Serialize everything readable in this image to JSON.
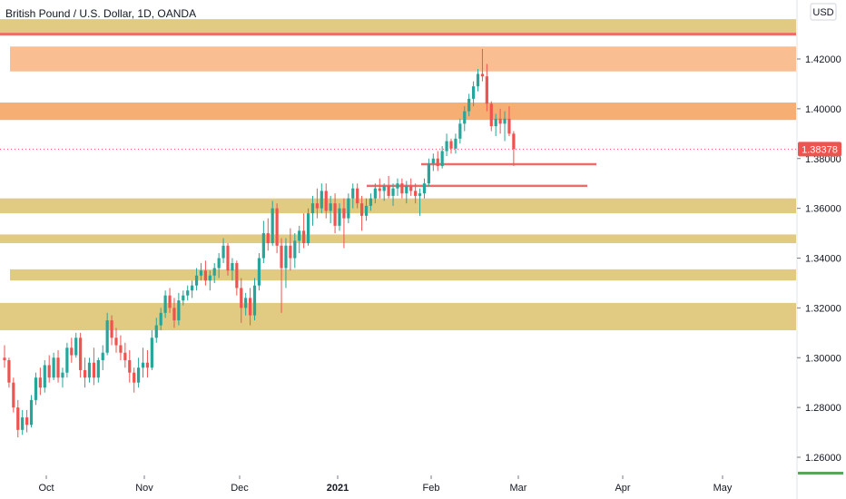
{
  "header": {
    "title": "British Pound / U.S. Dollar, 1D, OANDA"
  },
  "currency_button": {
    "label": "USD"
  },
  "colors": {
    "up": "#26a69a",
    "down": "#ef5350",
    "zone_gold": "#d9bb5f",
    "zone_peach": "#f8b37f",
    "zone_orange": "#f5a05a",
    "resistance_line": "#ef6b6b",
    "axis_text": "#131722",
    "last_price_bg": "#ef5350",
    "last_price_dots": "#ef5350",
    "green_strip": "#5aa55d"
  },
  "chart_data": {
    "type": "candlestick",
    "title": "British Pound / U.S. Dollar, 1D, OANDA",
    "xlabel": "",
    "ylabel": "",
    "currency": "USD",
    "ylim": [
      1.248,
      1.438
    ],
    "y_ticks": [
      "1.42000",
      "1.40000",
      "1.38000",
      "1.36000",
      "1.34000",
      "1.32000",
      "1.30000",
      "1.28000",
      "1.26000"
    ],
    "x_ticks": [
      {
        "label": "Oct",
        "bold": false
      },
      {
        "label": "Nov",
        "bold": false
      },
      {
        "label": "Dec",
        "bold": false
      },
      {
        "label": "2021",
        "bold": true
      },
      {
        "label": "Feb",
        "bold": false
      },
      {
        "label": "Mar",
        "bold": false
      },
      {
        "label": "Apr",
        "bold": false
      },
      {
        "label": "May",
        "bold": false
      }
    ],
    "last_price": "1.38378",
    "zones": [
      {
        "top": 1.436,
        "bottom": 1.43,
        "color": "gold",
        "full_width": true
      },
      {
        "top": 1.425,
        "bottom": 1.415,
        "color": "peach",
        "full_width": false
      },
      {
        "top": 1.4025,
        "bottom": 1.3955,
        "color": "orange",
        "full_width": true
      },
      {
        "top": 1.364,
        "bottom": 1.358,
        "color": "gold",
        "full_width": true
      },
      {
        "top": 1.3495,
        "bottom": 1.346,
        "color": "gold",
        "full_width": true
      },
      {
        "top": 1.3355,
        "bottom": 1.331,
        "color": "gold",
        "full_width": false
      },
      {
        "top": 1.322,
        "bottom": 1.311,
        "color": "gold",
        "full_width": true
      }
    ],
    "lines": [
      {
        "price": 1.43,
        "from": "left-edge",
        "to": "right-edge"
      },
      {
        "price": 1.3777,
        "from": "Jan 28",
        "to": "Mar 29"
      },
      {
        "price": 1.369,
        "from": "Jan 10",
        "to": "Mar 25"
      }
    ],
    "candles": [
      [
        1.3,
        1.305,
        1.296,
        1.299
      ],
      [
        1.299,
        1.3,
        1.288,
        1.29
      ],
      [
        1.29,
        1.292,
        1.278,
        1.28
      ],
      [
        1.28,
        1.283,
        1.268,
        1.271
      ],
      [
        1.271,
        1.279,
        1.269,
        1.276
      ],
      [
        1.276,
        1.279,
        1.27,
        1.273
      ],
      [
        1.273,
        1.285,
        1.272,
        1.283
      ],
      [
        1.283,
        1.294,
        1.281,
        1.292
      ],
      [
        1.292,
        1.296,
        1.285,
        1.288
      ],
      [
        1.288,
        1.299,
        1.286,
        1.297
      ],
      [
        1.297,
        1.301,
        1.29,
        1.292
      ],
      [
        1.292,
        1.302,
        1.291,
        1.3
      ],
      [
        1.3,
        1.303,
        1.29,
        1.292
      ],
      [
        1.292,
        1.296,
        1.288,
        1.294
      ],
      [
        1.294,
        1.306,
        1.292,
        1.304
      ],
      [
        1.304,
        1.308,
        1.298,
        1.301
      ],
      [
        1.301,
        1.31,
        1.3,
        1.308
      ],
      [
        1.308,
        1.31,
        1.292,
        1.295
      ],
      [
        1.295,
        1.3,
        1.288,
        1.292
      ],
      [
        1.292,
        1.3,
        1.29,
        1.298
      ],
      [
        1.298,
        1.304,
        1.289,
        1.292
      ],
      [
        1.292,
        1.3,
        1.29,
        1.299
      ],
      [
        1.299,
        1.305,
        1.295,
        1.302
      ],
      [
        1.302,
        1.318,
        1.301,
        1.315
      ],
      [
        1.315,
        1.317,
        1.305,
        1.308
      ],
      [
        1.308,
        1.312,
        1.302,
        1.305
      ],
      [
        1.305,
        1.309,
        1.299,
        1.302
      ],
      [
        1.302,
        1.306,
        1.296,
        1.299
      ],
      [
        1.299,
        1.303,
        1.29,
        1.294
      ],
      [
        1.294,
        1.296,
        1.286,
        1.29
      ],
      [
        1.29,
        1.3,
        1.288,
        1.296
      ],
      [
        1.296,
        1.304,
        1.292,
        1.298
      ],
      [
        1.298,
        1.303,
        1.292,
        1.296
      ],
      [
        1.296,
        1.311,
        1.295,
        1.308
      ],
      [
        1.308,
        1.316,
        1.306,
        1.313
      ],
      [
        1.313,
        1.32,
        1.311,
        1.318
      ],
      [
        1.318,
        1.327,
        1.316,
        1.325
      ],
      [
        1.325,
        1.328,
        1.318,
        1.32
      ],
      [
        1.32,
        1.324,
        1.312,
        1.315
      ],
      [
        1.315,
        1.326,
        1.313,
        1.323
      ],
      [
        1.323,
        1.327,
        1.321,
        1.325
      ],
      [
        1.325,
        1.329,
        1.323,
        1.327
      ],
      [
        1.327,
        1.331,
        1.324,
        1.329
      ],
      [
        1.329,
        1.336,
        1.327,
        1.333
      ],
      [
        1.333,
        1.338,
        1.331,
        1.335
      ],
      [
        1.335,
        1.339,
        1.329,
        1.331
      ],
      [
        1.331,
        1.335,
        1.327,
        1.333
      ],
      [
        1.333,
        1.338,
        1.33,
        1.336
      ],
      [
        1.336,
        1.342,
        1.332,
        1.34
      ],
      [
        1.34,
        1.348,
        1.338,
        1.345
      ],
      [
        1.345,
        1.346,
        1.333,
        1.335
      ],
      [
        1.335,
        1.34,
        1.331,
        1.338
      ],
      [
        1.338,
        1.339,
        1.325,
        1.328
      ],
      [
        1.328,
        1.332,
        1.314,
        1.32
      ],
      [
        1.32,
        1.326,
        1.317,
        1.324
      ],
      [
        1.324,
        1.328,
        1.313,
        1.317
      ],
      [
        1.317,
        1.332,
        1.315,
        1.329
      ],
      [
        1.329,
        1.342,
        1.327,
        1.34
      ],
      [
        1.34,
        1.355,
        1.338,
        1.35
      ],
      [
        1.35,
        1.356,
        1.343,
        1.346
      ],
      [
        1.346,
        1.363,
        1.345,
        1.36
      ],
      [
        1.36,
        1.362,
        1.342,
        1.345
      ],
      [
        1.345,
        1.348,
        1.318,
        1.336
      ],
      [
        1.336,
        1.348,
        1.328,
        1.345
      ],
      [
        1.345,
        1.352,
        1.335,
        1.34
      ],
      [
        1.34,
        1.35,
        1.336,
        1.347
      ],
      [
        1.347,
        1.353,
        1.342,
        1.351
      ],
      [
        1.351,
        1.358,
        1.344,
        1.346
      ],
      [
        1.346,
        1.36,
        1.345,
        1.358
      ],
      [
        1.358,
        1.365,
        1.353,
        1.362
      ],
      [
        1.362,
        1.368,
        1.356,
        1.36
      ],
      [
        1.36,
        1.37,
        1.358,
        1.367
      ],
      [
        1.367,
        1.37,
        1.356,
        1.359
      ],
      [
        1.359,
        1.365,
        1.354,
        1.362
      ],
      [
        1.362,
        1.366,
        1.35,
        1.353
      ],
      [
        1.353,
        1.362,
        1.351,
        1.36
      ],
      [
        1.36,
        1.364,
        1.344,
        1.356
      ],
      [
        1.356,
        1.366,
        1.354,
        1.364
      ],
      [
        1.364,
        1.37,
        1.36,
        1.368
      ],
      [
        1.368,
        1.37,
        1.36,
        1.362
      ],
      [
        1.362,
        1.365,
        1.351,
        1.357
      ],
      [
        1.357,
        1.364,
        1.355,
        1.361
      ],
      [
        1.361,
        1.366,
        1.359,
        1.364
      ],
      [
        1.364,
        1.37,
        1.362,
        1.368
      ],
      [
        1.368,
        1.372,
        1.364,
        1.367
      ],
      [
        1.367,
        1.37,
        1.363,
        1.369
      ],
      [
        1.369,
        1.373,
        1.364,
        1.365
      ],
      [
        1.365,
        1.37,
        1.361,
        1.368
      ],
      [
        1.368,
        1.372,
        1.365,
        1.37
      ],
      [
        1.37,
        1.372,
        1.364,
        1.366
      ],
      [
        1.366,
        1.371,
        1.362,
        1.369
      ],
      [
        1.369,
        1.372,
        1.365,
        1.367
      ],
      [
        1.367,
        1.37,
        1.362,
        1.365
      ],
      [
        1.365,
        1.368,
        1.357,
        1.366
      ],
      [
        1.366,
        1.372,
        1.364,
        1.37
      ],
      [
        1.37,
        1.38,
        1.369,
        1.378
      ],
      [
        1.378,
        1.382,
        1.375,
        1.38
      ],
      [
        1.38,
        1.383,
        1.375,
        1.377
      ],
      [
        1.377,
        1.385,
        1.376,
        1.383
      ],
      [
        1.383,
        1.39,
        1.381,
        1.387
      ],
      [
        1.387,
        1.388,
        1.382,
        1.384
      ],
      [
        1.384,
        1.39,
        1.382,
        1.388
      ],
      [
        1.388,
        1.396,
        1.386,
        1.394
      ],
      [
        1.394,
        1.401,
        1.391,
        1.399
      ],
      [
        1.399,
        1.406,
        1.397,
        1.404
      ],
      [
        1.404,
        1.411,
        1.401,
        1.409
      ],
      [
        1.409,
        1.416,
        1.407,
        1.414
      ],
      [
        1.414,
        1.424,
        1.411,
        1.413
      ],
      [
        1.413,
        1.418,
        1.399,
        1.402
      ],
      [
        1.402,
        1.403,
        1.391,
        1.393
      ],
      [
        1.393,
        1.398,
        1.389,
        1.396
      ],
      [
        1.396,
        1.4,
        1.39,
        1.394
      ],
      [
        1.394,
        1.399,
        1.387,
        1.396
      ],
      [
        1.396,
        1.401,
        1.389,
        1.39
      ],
      [
        1.39,
        1.391,
        1.377,
        1.3838
      ]
    ]
  }
}
